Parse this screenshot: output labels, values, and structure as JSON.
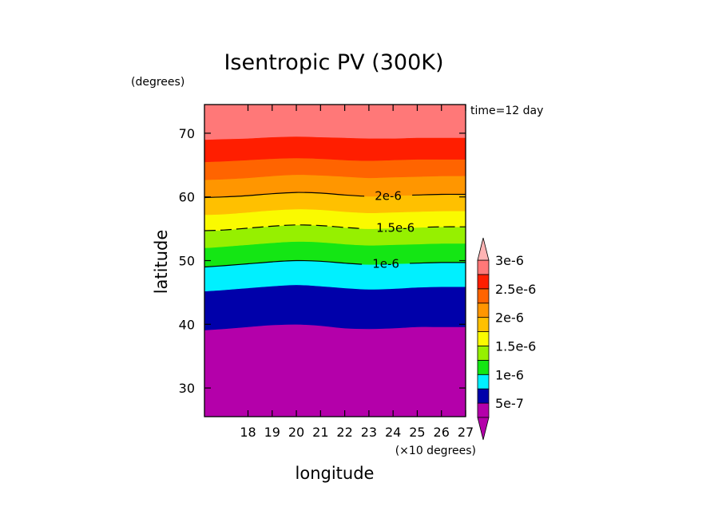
{
  "chart_data": {
    "type": "filled-contour",
    "title": "Isentropic PV (300K)",
    "xlabel": "longitude",
    "ylabel": "latitude",
    "x_unit_label": "(×10 degrees)",
    "y_unit_label": "(degrees)",
    "annotation": "time=12 day",
    "xlim": [
      16.2,
      27.0
    ],
    "ylim": [
      25.5,
      74.5
    ],
    "x_ticks": [
      18,
      19,
      20,
      21,
      22,
      23,
      24,
      25,
      26,
      27
    ],
    "x_tick_labels": [
      "18",
      "19",
      "20",
      "21",
      "22",
      "23",
      "24",
      "25",
      "26",
      "27"
    ],
    "y_ticks": [
      30,
      40,
      50,
      60,
      70
    ],
    "y_tick_labels": [
      "30",
      "40",
      "50",
      "60",
      "70"
    ],
    "contour_levels": [
      5e-07,
      7.5e-07,
      1e-06,
      1.25e-06,
      1.5e-06,
      1.75e-06,
      2e-06,
      2.25e-06,
      2.5e-06,
      2.75e-06,
      3e-06
    ],
    "fill_colors": [
      "#b400aa",
      "#0000aa",
      "#00f0ff",
      "#14e614",
      "#96f000",
      "#fafa00",
      "#ffc000",
      "#ff9600",
      "#ff6400",
      "#ff1e00",
      "#ff7878"
    ],
    "colorbar": {
      "extend": "both",
      "under_color": "#b400aa",
      "over_color": "#ffb4b4",
      "labels": [
        {
          "text": "5e-7",
          "value": 5e-07
        },
        {
          "text": "1e-6",
          "value": 1e-06
        },
        {
          "text": "1.5e-6",
          "value": 1.5e-06
        },
        {
          "text": "2e-6",
          "value": 2e-06
        },
        {
          "text": "2.5e-6",
          "value": 2.5e-06
        },
        {
          "text": "3e-6",
          "value": 3e-06
        }
      ]
    },
    "line_x": [
      16.2,
      17,
      18,
      19,
      20,
      21,
      22,
      23,
      24,
      25,
      26,
      27
    ],
    "band_boundaries": [
      {
        "level": 5e-07,
        "y": [
          39.1,
          39.3,
          39.6,
          39.9,
          40.0,
          39.8,
          39.4,
          39.3,
          39.4,
          39.6,
          39.6,
          39.6
        ]
      },
      {
        "level": 7.5e-07,
        "y": [
          45.2,
          45.4,
          45.7,
          46.0,
          46.2,
          46.0,
          45.7,
          45.5,
          45.6,
          45.8,
          45.9,
          45.9
        ]
      },
      {
        "level": 1e-06,
        "y": [
          49.0,
          49.2,
          49.5,
          49.8,
          50.0,
          49.9,
          49.6,
          49.4,
          49.5,
          49.6,
          49.7,
          49.7
        ]
      },
      {
        "level": 1.25e-06,
        "y": [
          52.0,
          52.2,
          52.5,
          52.8,
          53.0,
          52.9,
          52.6,
          52.4,
          52.5,
          52.6,
          52.7,
          52.7
        ]
      },
      {
        "level": 1.5e-06,
        "y": [
          54.7,
          54.8,
          55.1,
          55.4,
          55.6,
          55.5,
          55.2,
          55.0,
          55.1,
          55.2,
          55.3,
          55.3
        ]
      },
      {
        "level": 1.75e-06,
        "y": [
          57.2,
          57.3,
          57.6,
          57.9,
          58.1,
          58.0,
          57.7,
          57.5,
          57.6,
          57.7,
          57.8,
          57.8
        ]
      },
      {
        "level": 2e-06,
        "y": [
          59.9,
          60.0,
          60.2,
          60.5,
          60.7,
          60.6,
          60.3,
          60.1,
          60.2,
          60.3,
          60.4,
          60.4
        ]
      },
      {
        "level": 2.25e-06,
        "y": [
          62.7,
          62.8,
          63.0,
          63.3,
          63.5,
          63.4,
          63.2,
          63.0,
          63.1,
          63.2,
          63.3,
          63.3
        ]
      },
      {
        "level": 2.5e-06,
        "y": [
          65.5,
          65.6,
          65.8,
          66.0,
          66.1,
          66.0,
          65.8,
          65.7,
          65.8,
          65.9,
          65.9,
          65.9
        ]
      },
      {
        "level": 2.75e-06,
        "y": [
          69.0,
          69.1,
          69.2,
          69.4,
          69.5,
          69.4,
          69.3,
          69.2,
          69.2,
          69.3,
          69.3,
          69.3
        ]
      }
    ],
    "contour_lines": [
      {
        "label": "2e-6",
        "boundary_index": 6,
        "style": "solid",
        "label_x": 23.8
      },
      {
        "label": "1.5e-6",
        "boundary_index": 4,
        "style": "dashed",
        "label_x": 24.1
      },
      {
        "label": "1e-6",
        "boundary_index": 2,
        "style": "solid",
        "label_x": 23.7
      }
    ]
  }
}
